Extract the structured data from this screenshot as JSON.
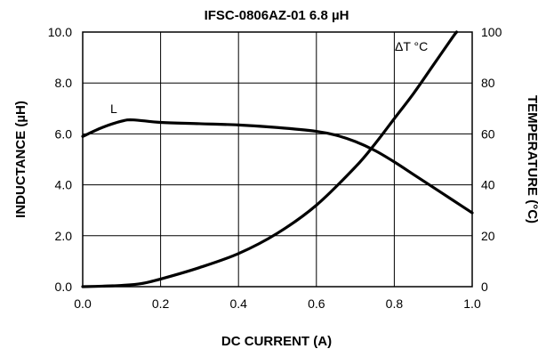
{
  "chart_data": {
    "type": "line",
    "title": "IFSC-0806AZ-01 6.8 µH",
    "xlabel": "DC CURRENT (A)",
    "ylabel_left": "INDUCTANCE (µH)",
    "ylabel_right": "TEMPERATURE (°C)",
    "xlim": [
      0.0,
      1.0
    ],
    "ylim_left": [
      0.0,
      10.0
    ],
    "ylim_right": [
      0,
      100
    ],
    "grid": true,
    "x_ticks": [
      "0.0",
      "0.2",
      "0.4",
      "0.6",
      "0.8",
      "1.0"
    ],
    "y_ticks_left": [
      "0.0",
      "2.0",
      "4.0",
      "6.0",
      "8.0",
      "10.0"
    ],
    "y_ticks_right": [
      "0",
      "20",
      "40",
      "60",
      "80",
      "100"
    ],
    "series": [
      {
        "name": "L",
        "axis": "left",
        "x": [
          0.0,
          0.05,
          0.1,
          0.13,
          0.2,
          0.3,
          0.4,
          0.5,
          0.6,
          0.65,
          0.7,
          0.75,
          0.8,
          0.85,
          0.9,
          0.95,
          1.0
        ],
        "y": [
          5.9,
          6.25,
          6.5,
          6.55,
          6.45,
          6.4,
          6.35,
          6.25,
          6.1,
          5.95,
          5.7,
          5.35,
          4.9,
          4.4,
          3.9,
          3.4,
          2.9
        ]
      },
      {
        "name": "ΔT °C",
        "axis": "right",
        "x": [
          0.0,
          0.05,
          0.1,
          0.15,
          0.2,
          0.3,
          0.4,
          0.5,
          0.6,
          0.7,
          0.75,
          0.8,
          0.85,
          0.9,
          0.95,
          0.96
        ],
        "y": [
          0,
          0.2,
          0.5,
          1.2,
          3,
          7.5,
          13,
          21,
          32,
          47,
          56,
          66,
          76,
          87,
          98,
          100
        ]
      }
    ]
  }
}
